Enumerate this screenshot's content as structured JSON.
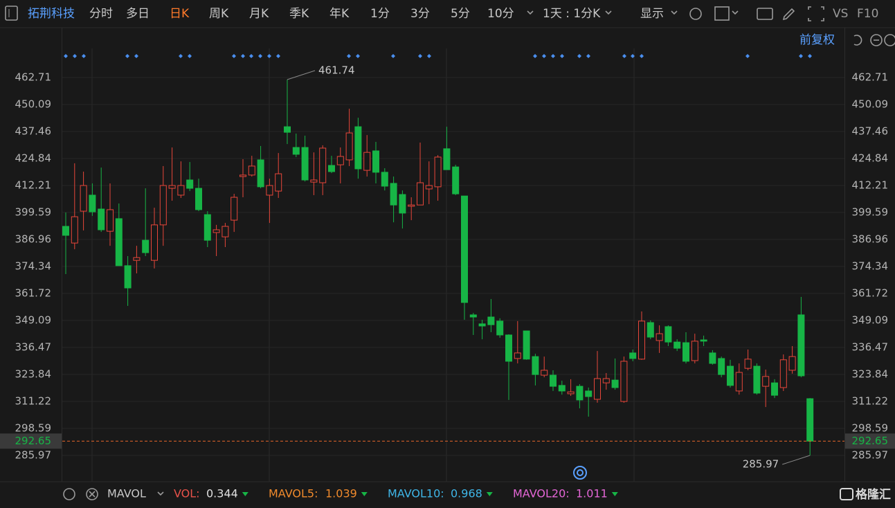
{
  "toolbar": {
    "stock_name": "拓荆科技",
    "tabs": [
      "分时",
      "多日",
      "日K",
      "周K",
      "月K",
      "季K",
      "年K",
      "1分",
      "3分",
      "5分",
      "10分"
    ],
    "period_select": "1天 : 1分K",
    "display": "显示",
    "vs": "VS",
    "f10": "F10"
  },
  "adjust": "前复权",
  "indicator": {
    "name": "MAVOL",
    "items": [
      {
        "label": "VOL:",
        "value": 0.344,
        "color": "#e8524a"
      },
      {
        "label": "MAVOL5:",
        "value": 1.039,
        "color": "#f08a2c"
      },
      {
        "label": "MAVOL10:",
        "value": 0.968,
        "color": "#3fb6e8"
      },
      {
        "label": "MAVOL20:",
        "value": 1.011,
        "color": "#e466d6"
      }
    ]
  },
  "logo": "格隆汇",
  "chart_data": {
    "type": "candlestick",
    "open": [
      393.1,
      385.3,
      400.2,
      407.7,
      401.2,
      390.8,
      396.7,
      374.7,
      377.2,
      386.6,
      377.2,
      393.8,
      410.9,
      407.7,
      414.8,
      410.9,
      398.6,
      390.2,
      388.2,
      396.0,
      416.4,
      417.1,
      424.2,
      407.7,
      409.6,
      439.7,
      430.0,
      430.0,
      413.8,
      413.5,
      421.6,
      421.9,
      424.2,
      439.7,
      419.3,
      428.4,
      418.4,
      413.2,
      408.0,
      402.5,
      403.1,
      410.6,
      411.6,
      429.4,
      420.9,
      407.3,
      351.7,
      347.5,
      350.7,
      348.8,
      342.3,
      331.3,
      344.2,
      332.2,
      323.5,
      323.5,
      318.7,
      314.8,
      318.3,
      316.1,
      312.2,
      319.9,
      321.2,
      311.2,
      333.9,
      331.0,
      348.1,
      339.7,
      346.2,
      339.0,
      338.7,
      330.3,
      340.0,
      333.9,
      331.3,
      327.7,
      316.1,
      326.7,
      327.7,
      318.3,
      319.9,
      317.7,
      325.8,
      351.7,
      312.5
    ],
    "high": [
      399.6,
      422.6,
      418.7,
      413.2,
      420.6,
      413.2,
      403.8,
      379.2,
      384.0,
      410.9,
      401.8,
      421.3,
      430.0,
      423.5,
      423.2,
      415.4,
      400.2,
      393.8,
      394.7,
      408.3,
      424.5,
      426.1,
      430.7,
      415.4,
      427.4,
      461.74,
      436.5,
      435.5,
      427.7,
      431.0,
      426.1,
      430.0,
      448.1,
      443.9,
      435.8,
      432.6,
      420.3,
      416.4,
      409.9,
      406.7,
      432.3,
      423.5,
      426.4,
      439.7,
      421.9,
      407.3,
      352.6,
      349.4,
      359.1,
      350.1,
      342.6,
      348.8,
      344.2,
      333.5,
      332.2,
      325.8,
      320.9,
      321.6,
      319.3,
      317.7,
      334.8,
      324.5,
      331.3,
      332.2,
      335.5,
      353.3,
      349.1,
      346.8,
      346.8,
      340.3,
      343.6,
      342.9,
      342.0,
      335.2,
      332.2,
      330.7,
      329.0,
      335.5,
      329.0,
      326.1,
      321.6,
      333.2,
      337.1,
      360.1,
      312.8
    ],
    "low": [
      370.8,
      382.4,
      391.2,
      398.0,
      390.5,
      384.0,
      374.7,
      355.9,
      371.1,
      379.2,
      373.4,
      384.0,
      405.1,
      406.4,
      409.6,
      400.2,
      383.4,
      379.2,
      383.4,
      390.5,
      406.7,
      416.4,
      410.9,
      394.7,
      406.4,
      431.6,
      425.5,
      414.1,
      407.7,
      407.7,
      418.0,
      413.2,
      421.3,
      415.4,
      416.4,
      413.2,
      409.9,
      395.0,
      392.1,
      396.0,
      403.1,
      403.5,
      405.1,
      419.6,
      407.7,
      349.4,
      342.3,
      340.3,
      343.6,
      341.0,
      311.9,
      329.0,
      330.7,
      318.7,
      322.5,
      316.1,
      314.4,
      313.8,
      308.0,
      304.1,
      310.6,
      316.7,
      316.7,
      310.6,
      330.0,
      330.7,
      340.3,
      333.9,
      337.1,
      334.8,
      329.0,
      329.0,
      337.1,
      328.4,
      322.5,
      317.7,
      314.4,
      325.8,
      314.4,
      308.6,
      312.8,
      316.1,
      324.2,
      322.5,
      285.97
    ],
    "close": [
      388.9,
      397.6,
      412.2,
      399.9,
      391.5,
      400.9,
      374.7,
      364.3,
      378.5,
      380.8,
      393.8,
      412.2,
      412.2,
      412.2,
      410.9,
      400.9,
      386.6,
      391.5,
      393.1,
      406.7,
      417.1,
      421.3,
      411.6,
      412.2,
      417.7,
      437.1,
      426.8,
      414.8,
      414.8,
      429.7,
      418.7,
      425.8,
      436.8,
      420.0,
      427.7,
      418.4,
      411.9,
      403.1,
      399.3,
      403.1,
      413.5,
      412.2,
      425.5,
      419.6,
      408.3,
      357.5,
      350.7,
      346.5,
      347.1,
      342.3,
      330.0,
      333.9,
      331.0,
      323.8,
      325.8,
      318.3,
      316.1,
      315.7,
      311.9,
      313.5,
      321.9,
      321.9,
      317.7,
      330.0,
      331.3,
      348.8,
      341.3,
      342.9,
      339.0,
      336.1,
      330.0,
      339.4,
      339.4,
      329.0,
      323.8,
      318.7,
      324.8,
      331.0,
      315.1,
      322.9,
      314.1,
      330.7,
      332.2,
      323.2,
      292.65
    ],
    "up_color": "#e8463a",
    "down_color": "#17b546",
    "ylim": [
      273.67,
      486.02
    ],
    "yticks": [
      462.71,
      450.09,
      437.46,
      424.84,
      412.21,
      399.59,
      386.96,
      374.34,
      361.72,
      349.09,
      336.47,
      323.84,
      311.22,
      298.59,
      285.97
    ],
    "grid": true,
    "last_price": 292.65,
    "high_annotation": 461.74,
    "low_annotation": 285.97
  }
}
